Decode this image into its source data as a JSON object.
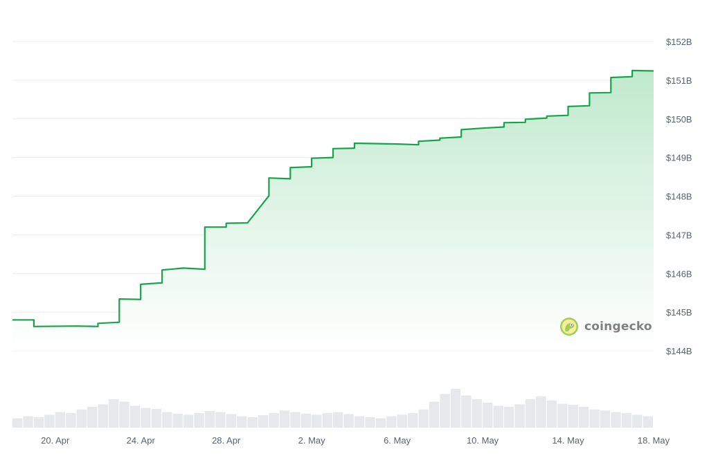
{
  "brand": {
    "name": "coingecko",
    "logo_icon": "gecko-logo-icon"
  },
  "colors": {
    "line": "#16a34a",
    "area_top": "#bfe9cc",
    "area_bottom": "#ffffff",
    "volume": "#e6e8eb"
  },
  "chart_data": {
    "type": "line",
    "title": "",
    "xlabel": "",
    "ylabel": "",
    "x_ticks": [
      "20. Apr",
      "24. Apr",
      "28. Apr",
      "2. May",
      "6. May",
      "10. May",
      "14. May",
      "18. May"
    ],
    "y_ticks": [
      "$144B",
      "$145B",
      "$146B",
      "$147B",
      "$148B",
      "$149B",
      "$150B",
      "$151B",
      "$152B"
    ],
    "ylim_billions": [
      144,
      152
    ],
    "x_range": [
      "2024-04-18",
      "2024-05-18"
    ],
    "grid": true,
    "fill": "area gradient",
    "series": [
      {
        "unit": "USD billions",
        "points": [
          [
            "2024-04-18",
            144.8
          ],
          [
            "2024-04-19",
            144.8
          ],
          [
            "2024-04-19",
            144.63
          ],
          [
            "2024-04-21",
            144.64
          ],
          [
            "2024-04-22",
            144.63
          ],
          [
            "2024-04-22",
            144.71
          ],
          [
            "2024-04-23",
            144.74
          ],
          [
            "2024-04-23",
            144.79
          ],
          [
            "2024-04-23",
            145.34
          ],
          [
            "2024-04-24",
            145.33
          ],
          [
            "2024-04-24",
            145.72
          ],
          [
            "2024-04-25",
            145.76
          ],
          [
            "2024-04-25",
            146.09
          ],
          [
            "2024-04-26",
            146.14
          ],
          [
            "2024-04-27",
            146.11
          ],
          [
            "2024-04-27",
            147.2
          ],
          [
            "2024-04-28",
            147.2
          ],
          [
            "2024-04-28",
            147.3
          ],
          [
            "2024-04-29",
            147.31
          ],
          [
            "2024-04-30",
            148.01
          ],
          [
            "2024-04-30",
            148.47
          ],
          [
            "2024-05-01",
            148.45
          ],
          [
            "2024-05-01",
            148.74
          ],
          [
            "2024-05-02",
            148.76
          ],
          [
            "2024-05-02",
            148.98
          ],
          [
            "2024-05-03",
            149.0
          ],
          [
            "2024-05-03",
            149.23
          ],
          [
            "2024-05-04",
            149.24
          ],
          [
            "2024-05-04",
            149.37
          ],
          [
            "2024-05-06",
            149.35
          ],
          [
            "2024-05-07",
            149.33
          ],
          [
            "2024-05-07",
            149.42
          ],
          [
            "2024-05-08",
            149.45
          ],
          [
            "2024-05-08",
            149.5
          ],
          [
            "2024-05-09",
            149.53
          ],
          [
            "2024-05-09",
            149.72
          ],
          [
            "2024-05-10",
            149.76
          ],
          [
            "2024-05-11",
            149.79
          ],
          [
            "2024-05-11",
            149.9
          ],
          [
            "2024-05-12",
            149.91
          ],
          [
            "2024-05-12",
            149.99
          ],
          [
            "2024-05-13",
            150.02
          ],
          [
            "2024-05-13",
            150.07
          ],
          [
            "2024-05-14",
            150.09
          ],
          [
            "2024-05-14",
            150.32
          ],
          [
            "2024-05-15",
            150.34
          ],
          [
            "2024-05-15",
            150.67
          ],
          [
            "2024-05-16",
            150.68
          ],
          [
            "2024-05-16",
            151.07
          ],
          [
            "2024-05-17",
            151.09
          ],
          [
            "2024-05-17",
            151.25
          ],
          [
            "2024-05-18",
            151.24
          ]
        ]
      }
    ],
    "volume_series": {
      "relative_values": [
        0.18,
        0.22,
        0.2,
        0.25,
        0.3,
        0.28,
        0.35,
        0.4,
        0.45,
        0.55,
        0.5,
        0.42,
        0.38,
        0.36,
        0.3,
        0.27,
        0.25,
        0.28,
        0.32,
        0.3,
        0.26,
        0.22,
        0.2,
        0.24,
        0.28,
        0.33,
        0.3,
        0.27,
        0.25,
        0.28,
        0.3,
        0.26,
        0.22,
        0.2,
        0.18,
        0.22,
        0.25,
        0.28,
        0.35,
        0.5,
        0.65,
        0.75,
        0.62,
        0.55,
        0.48,
        0.42,
        0.4,
        0.45,
        0.55,
        0.6,
        0.52,
        0.46,
        0.44,
        0.4,
        0.35,
        0.33,
        0.3,
        0.28,
        0.25,
        0.22
      ]
    }
  }
}
